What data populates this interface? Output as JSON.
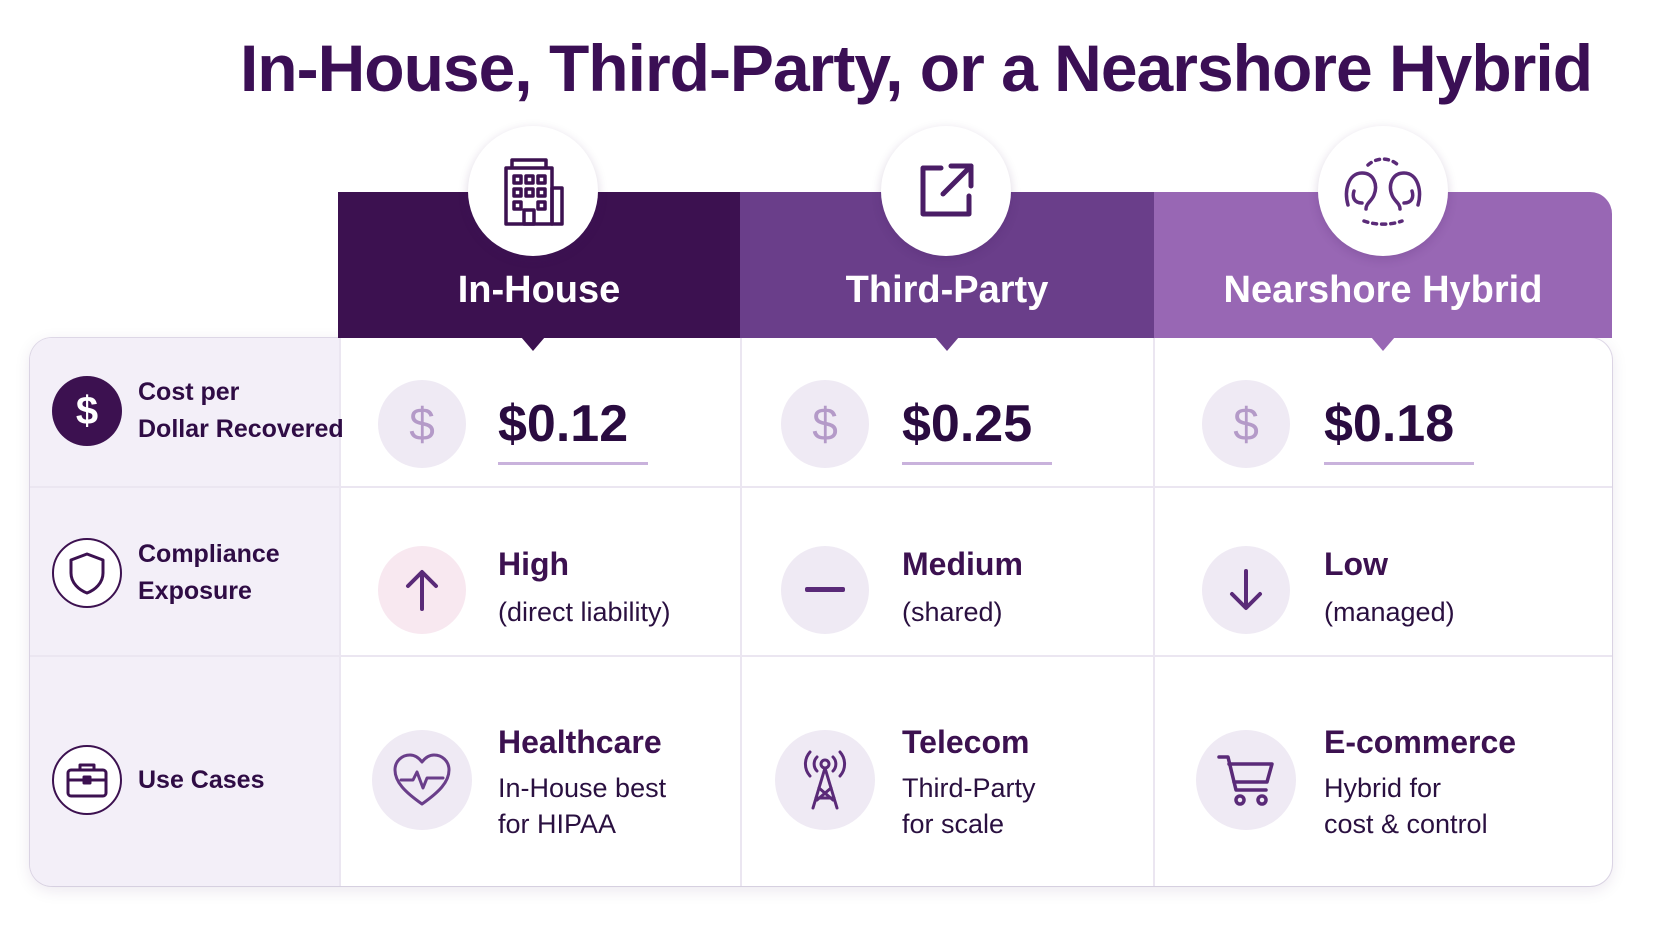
{
  "title": "In-House, Third-Party, or a Nearshore Hybrid",
  "columns": [
    {
      "name": "In-House",
      "icon": "building-icon",
      "color": "#3c1150"
    },
    {
      "name": "Third-Party",
      "icon": "external-link-icon",
      "color": "#6a3e8a"
    },
    {
      "name": "Nearshore Hybrid",
      "icon": "people-exchange-icon",
      "color": "#9867b4"
    }
  ],
  "rows": [
    {
      "label_line1": "Cost per",
      "label_line2": "Dollar Recovered",
      "icon": "dollar-icon"
    },
    {
      "label_line1": "Compliance",
      "label_line2": "Exposure",
      "icon": "shield-icon"
    },
    {
      "label_line1": "Use Cases",
      "label_line2": "",
      "icon": "briefcase-icon"
    }
  ],
  "cost": [
    {
      "value": "$0.12",
      "icon": "dollar-icon"
    },
    {
      "value": "$0.25",
      "icon": "dollar-icon"
    },
    {
      "value": "$0.18",
      "icon": "dollar-icon"
    }
  ],
  "compliance": [
    {
      "level": "High",
      "note": "(direct liability)",
      "icon": "arrow-up-icon"
    },
    {
      "level": "Medium",
      "note": "(shared)",
      "icon": "minus-icon"
    },
    {
      "level": "Low",
      "note": "(managed)",
      "icon": "arrow-down-icon"
    }
  ],
  "use_cases": [
    {
      "industry": "Healthcare",
      "line1": "In-House best",
      "line2": "for HIPAA",
      "icon": "heart-pulse-icon"
    },
    {
      "industry": "Telecom",
      "line1": "Third-Party",
      "line2": "for scale",
      "icon": "radio-tower-icon"
    },
    {
      "industry": "E-commerce",
      "line1": "Hybrid for",
      "line2": "cost & control",
      "icon": "shopping-cart-icon"
    }
  ]
}
